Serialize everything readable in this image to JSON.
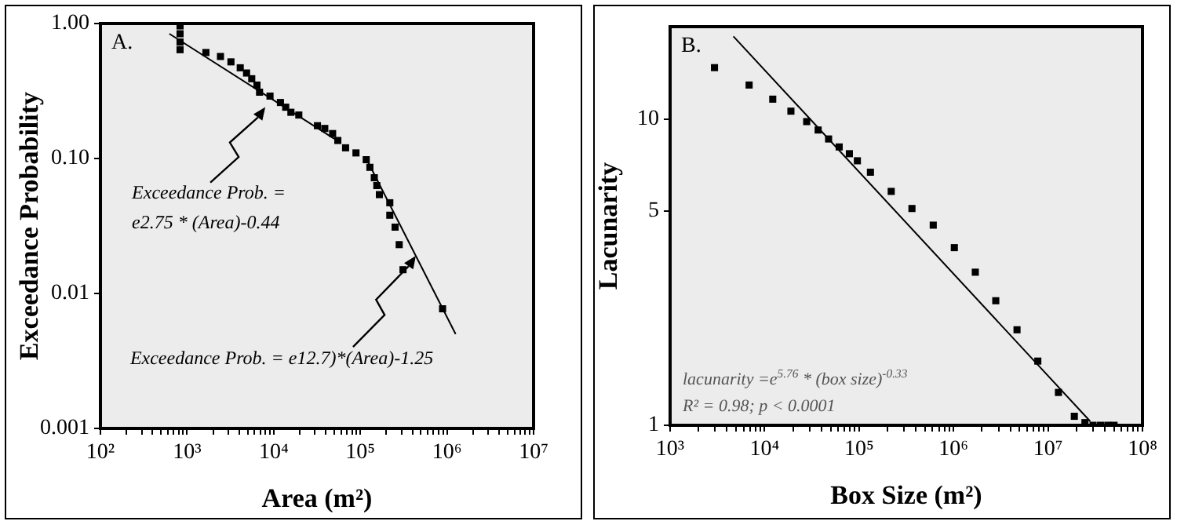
{
  "chart_data": [
    {
      "type": "scatter",
      "xlabel": "Area (m²)",
      "ylabel": "Exceedance Probability",
      "log": "xy",
      "grid": false,
      "xlim": [
        100,
        10000000
      ],
      "ylim": [
        0.001,
        1
      ],
      "xticks": [
        {
          "value": 100,
          "label": "10²"
        },
        {
          "value": 200,
          "label": null
        },
        {
          "value": 300,
          "label": null
        },
        {
          "value": 400,
          "label": null
        },
        {
          "value": 500,
          "label": null
        },
        {
          "value": 600,
          "label": null
        },
        {
          "value": 700,
          "label": null
        },
        {
          "value": 800,
          "label": null
        },
        {
          "value": 900,
          "label": null
        },
        {
          "value": 1000,
          "label": "10³"
        },
        {
          "value": 2000,
          "label": null
        },
        {
          "value": 3000,
          "label": null
        },
        {
          "value": 4000,
          "label": null
        },
        {
          "value": 5000,
          "label": null
        },
        {
          "value": 6000,
          "label": null
        },
        {
          "value": 7000,
          "label": null
        },
        {
          "value": 8000,
          "label": null
        },
        {
          "value": 9000,
          "label": null
        },
        {
          "value": 10000,
          "label": "10⁴"
        },
        {
          "value": 20000,
          "label": null
        },
        {
          "value": 30000,
          "label": null
        },
        {
          "value": 40000,
          "label": null
        },
        {
          "value": 50000,
          "label": null
        },
        {
          "value": 60000,
          "label": null
        },
        {
          "value": 70000,
          "label": null
        },
        {
          "value": 80000,
          "label": null
        },
        {
          "value": 90000,
          "label": null
        },
        {
          "value": 100000,
          "label": "10⁵"
        },
        {
          "value": 200000,
          "label": null
        },
        {
          "value": 300000,
          "label": null
        },
        {
          "value": 400000,
          "label": null
        },
        {
          "value": 500000,
          "label": null
        },
        {
          "value": 600000,
          "label": null
        },
        {
          "value": 700000,
          "label": null
        },
        {
          "value": 800000,
          "label": null
        },
        {
          "value": 900000,
          "label": null
        },
        {
          "value": 1000000,
          "label": "10⁶"
        },
        {
          "value": 2000000,
          "label": null
        },
        {
          "value": 3000000,
          "label": null
        },
        {
          "value": 4000000,
          "label": null
        },
        {
          "value": 5000000,
          "label": null
        },
        {
          "value": 6000000,
          "label": null
        },
        {
          "value": 7000000,
          "label": null
        },
        {
          "value": 8000000,
          "label": null
        },
        {
          "value": 9000000,
          "label": null
        },
        {
          "value": 10000000,
          "label": "10⁷"
        }
      ],
      "yticks": [
        {
          "value": 1,
          "label": "1.00"
        },
        {
          "value": 0.1,
          "label": "0.10"
        },
        0.01,
        0.001
      ],
      "annotations": [
        "A.",
        {
          "text": "Exceedance Prob. =\ne2.75 * (Area)-0.44",
          "x": 8000,
          "y": 0.24
        },
        {
          "text": "Exceedance Prob. = e12.7)*(Area)-1.25",
          "x": 437000,
          "y": 0.019
        }
      ],
      "series": [
        {
          "type": "scatter",
          "color": "#000000",
          "marker": "square",
          "x": [
            830,
            830,
            830,
            830,
            1650,
            2430,
            3210,
            4110,
            4860,
            5580,
            6410,
            6870,
            9070,
            11970,
            13760,
            15800,
            19500,
            32000,
            38900,
            47900,
            55000,
            67600,
            89100,
            117000,
            129000,
            145000,
            155000,
            166000,
            219000,
            219000,
            252000,
            281000,
            311000,
            890000
          ],
          "values": [
            0.96,
            0.84,
            0.73,
            0.64,
            0.61,
            0.57,
            0.52,
            0.47,
            0.43,
            0.39,
            0.35,
            0.31,
            0.29,
            0.26,
            0.24,
            0.22,
            0.21,
            0.175,
            0.167,
            0.153,
            0.136,
            0.12,
            0.11,
            0.098,
            0.086,
            0.072,
            0.063,
            0.054,
            0.047,
            0.038,
            0.031,
            0.023,
            0.015,
            0.0077
          ]
        },
        {
          "type": "line",
          "color": "#000000",
          "marker": "none",
          "x": [
            624,
            50000
          ],
          "values": [
            0.84,
            0.14
          ]
        },
        {
          "type": "line",
          "color": "#000000",
          "marker": "none",
          "x": [
            117000,
            1260000
          ],
          "values": [
            0.1,
            0.005
          ]
        }
      ]
    },
    {
      "type": "scatter",
      "xlabel": "Box Size (m²)",
      "ylabel": "Lacunarity",
      "log": "xy",
      "grid": false,
      "xlim": [
        1000,
        100000000
      ],
      "ylim": [
        1,
        20
      ],
      "xticks": [
        {
          "value": 1000,
          "label": "10³"
        },
        {
          "value": 2000,
          "label": null
        },
        {
          "value": 3000,
          "label": null
        },
        {
          "value": 4000,
          "label": null
        },
        {
          "value": 5000,
          "label": null
        },
        {
          "value": 6000,
          "label": null
        },
        {
          "value": 7000,
          "label": null
        },
        {
          "value": 8000,
          "label": null
        },
        {
          "value": 9000,
          "label": null
        },
        {
          "value": 10000,
          "label": "10⁴"
        },
        {
          "value": 20000,
          "label": null
        },
        {
          "value": 30000,
          "label": null
        },
        {
          "value": 40000,
          "label": null
        },
        {
          "value": 50000,
          "label": null
        },
        {
          "value": 60000,
          "label": null
        },
        {
          "value": 70000,
          "label": null
        },
        {
          "value": 80000,
          "label": null
        },
        {
          "value": 90000,
          "label": null
        },
        {
          "value": 100000,
          "label": "10⁵"
        },
        {
          "value": 200000,
          "label": null
        },
        {
          "value": 300000,
          "label": null
        },
        {
          "value": 400000,
          "label": null
        },
        {
          "value": 500000,
          "label": null
        },
        {
          "value": 600000,
          "label": null
        },
        {
          "value": 700000,
          "label": null
        },
        {
          "value": 800000,
          "label": null
        },
        {
          "value": 900000,
          "label": null
        },
        {
          "value": 1000000,
          "label": "10⁶"
        },
        {
          "value": 2000000,
          "label": null
        },
        {
          "value": 3000000,
          "label": null
        },
        {
          "value": 4000000,
          "label": null
        },
        {
          "value": 5000000,
          "label": null
        },
        {
          "value": 6000000,
          "label": null
        },
        {
          "value": 7000000,
          "label": null
        },
        {
          "value": 8000000,
          "label": null
        },
        {
          "value": 9000000,
          "label": null
        },
        {
          "value": 10000000,
          "label": "10⁷"
        },
        {
          "value": 20000000,
          "label": null
        },
        {
          "value": 30000000,
          "label": null
        },
        {
          "value": 40000000,
          "label": null
        },
        {
          "value": 50000000,
          "label": null
        },
        {
          "value": 60000000,
          "label": null
        },
        {
          "value": 70000000,
          "label": null
        },
        {
          "value": 80000000,
          "label": null
        },
        {
          "value": 90000000,
          "label": null
        },
        {
          "value": 100000000,
          "label": "10⁸"
        }
      ],
      "yticks": [
        1,
        5,
        10
      ],
      "annotations": [
        "B.",
        "lacunarity =e$^{5.76}$ * (box size)$^{-0.33}$",
        "R² = 0.98; p < 0.0001"
      ],
      "series": [
        {
          "type": "scatter",
          "color": "#000000",
          "marker": "square",
          "x": [
            2950,
            6860,
            12200,
            19000,
            27900,
            36900,
            47600,
            61600,
            79000,
            96000,
            132000,
            219000,
            363000,
            610000,
            1020000,
            1700000,
            2800000,
            4700000,
            7800000,
            12900000,
            19000000,
            24600000,
            30000000,
            36000000,
            43000000,
            50000000
          ],
          "values": [
            14.7,
            12.9,
            11.6,
            10.6,
            9.8,
            9.2,
            8.6,
            8.1,
            7.7,
            7.3,
            6.7,
            5.8,
            5.1,
            4.5,
            3.8,
            3.16,
            2.55,
            2.05,
            1.62,
            1.28,
            1.07,
            1.02,
            1,
            1,
            1,
            1
          ]
        },
        {
          "type": "line",
          "color": "#000000",
          "marker": "none",
          "x": [
            4680,
            28000000
          ],
          "values": [
            18.6,
            1.03
          ]
        }
      ]
    }
  ]
}
